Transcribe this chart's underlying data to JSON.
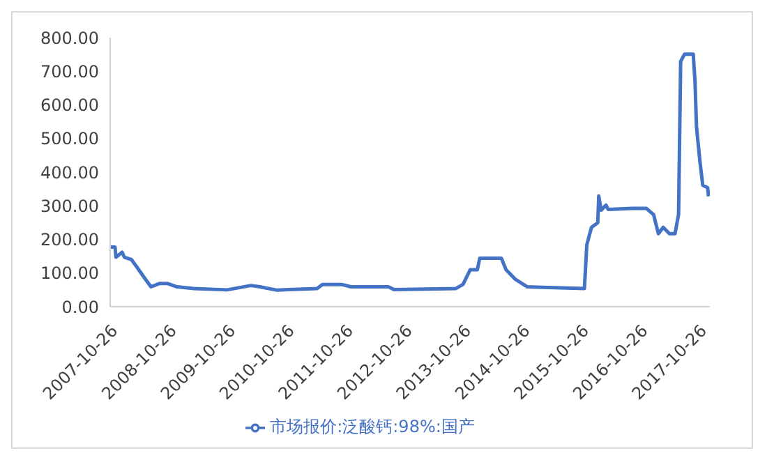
{
  "chart_data": {
    "type": "line",
    "x": [
      "2007-10-26",
      "2007-11-25",
      "2007-12-01",
      "2008-01-08",
      "2008-01-22",
      "2008-03-06",
      "2008-04-08",
      "2008-05-22",
      "2008-07-05",
      "2008-08-29",
      "2008-10-13",
      "2008-12-14",
      "2009-03-28",
      "2009-10-20",
      "2010-03-17",
      "2010-05-12",
      "2010-08-26",
      "2010-11-05",
      "2011-05-01",
      "2011-06-03",
      "2011-09-30",
      "2011-11-28",
      "2012-07-17",
      "2012-08-20",
      "2013-09-08",
      "2013-10-22",
      "2013-12-06",
      "2014-01-19",
      "2014-02-03",
      "2014-06-17",
      "2014-07-16",
      "2014-09-13",
      "2014-11-25",
      "2015-11-14",
      "2015-11-29",
      "2015-12-28",
      "2016-02-05",
      "2016-02-11",
      "2016-02-26",
      "2016-03-27",
      "2016-04-10",
      "2016-09-05",
      "2016-12-03",
      "2017-01-16",
      "2017-02-15",
      "2017-03-17",
      "2017-04-24",
      "2017-05-29",
      "2017-06-20",
      "2017-07-03",
      "2017-07-27",
      "2017-09-19",
      "2017-09-30",
      "2017-10-09",
      "2017-10-30",
      "2017-11-17",
      "2017-12-17",
      "2017-12-23"
    ],
    "series": [
      {
        "name": "市场报价:泛酸钙:98%:国产",
        "color": "#4472c4",
        "values": [
          177,
          177,
          147,
          162,
          147,
          140,
          118,
          88,
          59,
          69,
          69,
          59,
          54,
          50,
          63,
          59,
          49,
          51,
          54,
          66,
          66,
          59,
          59,
          51,
          54,
          66,
          110,
          110,
          144,
          144,
          110,
          81,
          59,
          54,
          184,
          236,
          250,
          329,
          287,
          302,
          289,
          292,
          292,
          274,
          217,
          236,
          217,
          217,
          274,
          729,
          751,
          751,
          670,
          537,
          434,
          361,
          354,
          328
        ]
      }
    ],
    "xlim": [
      "2007-10-26",
      "2017-12-31"
    ],
    "xticks": [
      "2007-10-26",
      "2008-10-26",
      "2009-10-26",
      "2010-10-26",
      "2011-10-26",
      "2012-10-26",
      "2013-10-26",
      "2014-10-26",
      "2015-10-26",
      "2016-10-26",
      "2017-10-26"
    ],
    "ylim": [
      0,
      800
    ],
    "yticks": [
      {
        "value": 0,
        "label": "0.00"
      },
      {
        "value": 100,
        "label": "100.00"
      },
      {
        "value": 200,
        "label": "200.00"
      },
      {
        "value": 300,
        "label": "300.00"
      },
      {
        "value": 400,
        "label": "400.00"
      },
      {
        "value": 500,
        "label": "500.00"
      },
      {
        "value": 600,
        "label": "600.00"
      },
      {
        "value": 700,
        "label": "700.00"
      },
      {
        "value": 800,
        "label": "800.00"
      }
    ],
    "grid": false,
    "legend": "bottom",
    "marker": "none",
    "line_style": "solid"
  }
}
